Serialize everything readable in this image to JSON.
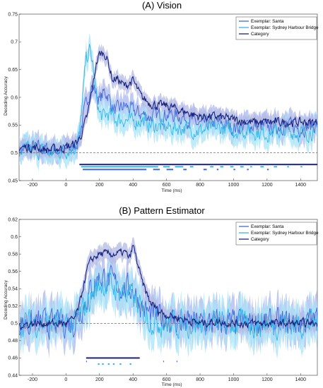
{
  "chart_data": [
    {
      "type": "line",
      "title": "(A) Vision",
      "xlabel": "Time (ms)",
      "ylabel": "Decoding Accuracy",
      "xlim": [
        -280,
        1500
      ],
      "ylim": [
        0.45,
        0.75
      ],
      "xticks": [
        -200,
        0,
        200,
        400,
        600,
        800,
        1000,
        1200,
        1400
      ],
      "yticks": [
        0.45,
        0.5,
        0.55,
        0.6,
        0.65,
        0.7,
        0.75
      ],
      "chance_level": 0.5,
      "legend_position": "top-right",
      "colors": {
        "santa": "#4169d8",
        "bridge": "#35b4ea",
        "category": "#1a237e",
        "santa_shade": "#a9b8ef",
        "bridge_shade": "#a8e3f7",
        "category_shade": "#b3b9e3",
        "chance": "#555555"
      },
      "series": [
        {
          "name": "Exemplar: Santa",
          "key": "santa",
          "x": [
            -280,
            -200,
            -100,
            0,
            50,
            80,
            100,
            130,
            150,
            170,
            200,
            230,
            250,
            280,
            300,
            350,
            400,
            450,
            500,
            600,
            700,
            800,
            900,
            1000,
            1100,
            1200,
            1300,
            1400,
            1500
          ],
          "y": [
            0.505,
            0.51,
            0.505,
            0.505,
            0.51,
            0.53,
            0.56,
            0.6,
            0.62,
            0.615,
            0.595,
            0.61,
            0.605,
            0.58,
            0.575,
            0.585,
            0.575,
            0.57,
            0.565,
            0.57,
            0.565,
            0.55,
            0.555,
            0.545,
            0.55,
            0.545,
            0.55,
            0.545,
            0.55
          ],
          "noise": 0.012
        },
        {
          "name": "Exemplar: Sydney Harbour Bridge",
          "key": "bridge",
          "x": [
            -280,
            -200,
            -100,
            0,
            50,
            80,
            100,
            120,
            140,
            160,
            180,
            200,
            220,
            250,
            280,
            300,
            350,
            400,
            450,
            500,
            600,
            700,
            800,
            900,
            1000,
            1100,
            1200,
            1300,
            1400,
            1500
          ],
          "y": [
            0.505,
            0.505,
            0.5,
            0.505,
            0.51,
            0.53,
            0.6,
            0.67,
            0.685,
            0.66,
            0.6,
            0.57,
            0.565,
            0.57,
            0.565,
            0.56,
            0.56,
            0.555,
            0.56,
            0.55,
            0.545,
            0.545,
            0.54,
            0.545,
            0.54,
            0.54,
            0.535,
            0.54,
            0.535,
            0.54
          ],
          "noise": 0.012
        },
        {
          "name": "Category",
          "key": "category",
          "x": [
            -280,
            -200,
            -100,
            0,
            50,
            80,
            100,
            130,
            160,
            180,
            200,
            230,
            250,
            280,
            300,
            350,
            400,
            450,
            500,
            550,
            600,
            700,
            800,
            900,
            1000,
            1100,
            1200,
            1300,
            1400,
            1500
          ],
          "y": [
            0.51,
            0.51,
            0.505,
            0.51,
            0.515,
            0.525,
            0.54,
            0.57,
            0.62,
            0.66,
            0.678,
            0.68,
            0.665,
            0.63,
            0.635,
            0.62,
            0.63,
            0.6,
            0.59,
            0.585,
            0.585,
            0.575,
            0.565,
            0.565,
            0.56,
            0.555,
            0.555,
            0.555,
            0.555,
            0.555
          ],
          "noise": 0.007
        }
      ],
      "significance": [
        {
          "key": "category",
          "y": 0.479,
          "ranges": [
            [
              80,
              1500
            ]
          ]
        },
        {
          "key": "bridge",
          "y": 0.475,
          "ranges": [
            [
              90,
              550
            ],
            [
              580,
              620
            ],
            [
              650,
              700
            ],
            [
              740,
              760
            ],
            [
              860,
              880
            ],
            [
              920,
              940
            ],
            [
              980,
              1000
            ],
            [
              1040,
              1060
            ],
            [
              1100,
              1110
            ],
            [
              1160,
              1180
            ],
            [
              1240,
              1260
            ],
            [
              1320,
              1330
            ],
            [
              1400,
              1410
            ]
          ]
        },
        {
          "key": "santa",
          "y": 0.47,
          "ranges": [
            [
              100,
              480
            ],
            [
              520,
              560
            ],
            [
              600,
              640
            ],
            [
              700,
              720
            ],
            [
              820,
              840
            ],
            [
              900,
              910
            ],
            [
              1000,
              1010
            ],
            [
              1080,
              1090
            ],
            [
              1200,
              1210
            ]
          ]
        }
      ]
    },
    {
      "type": "line",
      "title": "(B) Pattern Estimator",
      "xlabel": "Time (ms)",
      "ylabel": "Decoding Accuracy",
      "xlim": [
        -280,
        1500
      ],
      "ylim": [
        0.44,
        0.62
      ],
      "xticks": [
        -200,
        0,
        200,
        400,
        600,
        800,
        1000,
        1200,
        1400
      ],
      "yticks": [
        0.44,
        0.46,
        0.48,
        0.5,
        0.52,
        0.54,
        0.56,
        0.58,
        0.6,
        0.62
      ],
      "chance_level": 0.5,
      "legend_position": "top-right",
      "colors": {
        "santa": "#4169d8",
        "bridge": "#35b4ea",
        "category": "#1a237e",
        "santa_shade": "#a9b8ef",
        "bridge_shade": "#a8e3f7",
        "category_shade": "#b3b9e3",
        "chance": "#555555"
      },
      "series": [
        {
          "name": "Exemplar: Santa",
          "key": "santa",
          "x": [
            -280,
            -200,
            -100,
            0,
            50,
            100,
            150,
            200,
            250,
            300,
            350,
            400,
            450,
            500,
            600,
            700,
            800,
            900,
            1000,
            1100,
            1200,
            1300,
            1400,
            1500
          ],
          "y": [
            0.5,
            0.5,
            0.5,
            0.5,
            0.5,
            0.52,
            0.54,
            0.555,
            0.55,
            0.545,
            0.54,
            0.54,
            0.52,
            0.51,
            0.505,
            0.5,
            0.5,
            0.5,
            0.5,
            0.5,
            0.5,
            0.5,
            0.5,
            0.505
          ],
          "noise": 0.013
        },
        {
          "name": "Exemplar: Sydney Harbour Bridge",
          "key": "bridge",
          "x": [
            -280,
            -200,
            -100,
            0,
            50,
            100,
            150,
            200,
            250,
            300,
            350,
            400,
            450,
            500,
            600,
            700,
            800,
            900,
            1000,
            1100,
            1200,
            1300,
            1400,
            1500
          ],
          "y": [
            0.5,
            0.5,
            0.5,
            0.5,
            0.5,
            0.515,
            0.53,
            0.545,
            0.545,
            0.54,
            0.535,
            0.53,
            0.515,
            0.505,
            0.5,
            0.5,
            0.5,
            0.5,
            0.5,
            0.5,
            0.5,
            0.5,
            0.5,
            0.5
          ],
          "noise": 0.013
        },
        {
          "name": "Category",
          "key": "category",
          "x": [
            -280,
            -200,
            -100,
            0,
            50,
            80,
            100,
            130,
            160,
            200,
            250,
            300,
            350,
            380,
            400,
            420,
            450,
            480,
            500,
            550,
            600,
            700,
            800,
            900,
            1000,
            1100,
            1200,
            1300,
            1400,
            1500
          ],
          "y": [
            0.498,
            0.5,
            0.5,
            0.5,
            0.505,
            0.52,
            0.54,
            0.565,
            0.575,
            0.58,
            0.58,
            0.58,
            0.582,
            0.575,
            0.59,
            0.575,
            0.55,
            0.535,
            0.525,
            0.515,
            0.51,
            0.505,
            0.5,
            0.502,
            0.5,
            0.5,
            0.5,
            0.5,
            0.5,
            0.5
          ],
          "noise": 0.004
        }
      ],
      "significance": [
        {
          "key": "category",
          "y": 0.46,
          "ranges": [
            [
              120,
              440
            ]
          ]
        },
        {
          "key": "santa",
          "y": 0.456,
          "ranges": [
            [
              120,
              125
            ],
            [
              580,
              585
            ],
            [
              660,
              665
            ]
          ]
        },
        {
          "key": "bridge",
          "y": 0.453,
          "ranges": [
            [
              190,
              200
            ],
            [
              215,
              225
            ],
            [
              250,
              260
            ],
            [
              280,
              290
            ],
            [
              320,
              330
            ],
            [
              380,
              390
            ]
          ]
        }
      ]
    }
  ]
}
